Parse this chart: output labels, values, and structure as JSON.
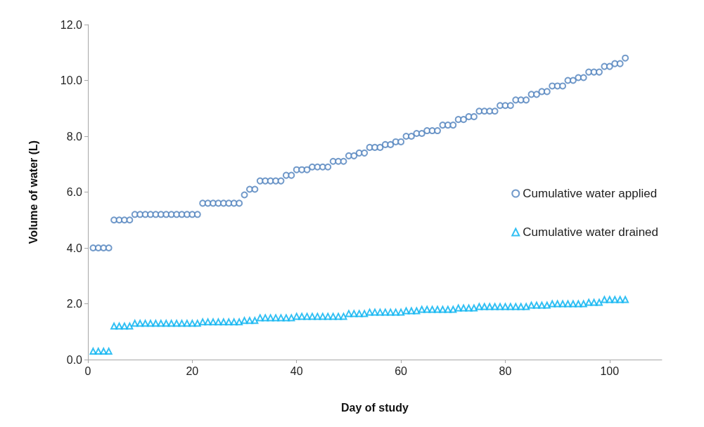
{
  "chart_data": {
    "type": "scatter",
    "xlabel": "Day of study",
    "ylabel": "Volume of water (L)",
    "x": [
      1,
      2,
      3,
      4,
      5,
      6,
      7,
      8,
      9,
      10,
      11,
      12,
      13,
      14,
      15,
      16,
      17,
      18,
      19,
      20,
      21,
      22,
      23,
      24,
      25,
      26,
      27,
      28,
      29,
      30,
      31,
      32,
      33,
      34,
      35,
      36,
      37,
      38,
      39,
      40,
      41,
      42,
      43,
      44,
      45,
      46,
      47,
      48,
      49,
      50,
      51,
      52,
      53,
      54,
      55,
      56,
      57,
      58,
      59,
      60,
      61,
      62,
      63,
      64,
      65,
      66,
      67,
      68,
      69,
      70,
      71,
      72,
      73,
      74,
      75,
      76,
      77,
      78,
      79,
      80,
      81,
      82,
      83,
      84,
      85,
      86,
      87,
      88,
      89,
      90,
      91,
      92,
      93,
      94,
      95,
      96,
      97,
      98,
      99,
      100,
      101,
      102,
      103
    ],
    "series": [
      {
        "name": "Cumulative water applied",
        "color": "#4f81bd",
        "marker": "circle",
        "values": [
          4.0,
          4.0,
          4.0,
          4.0,
          5.0,
          5.0,
          5.0,
          5.0,
          5.2,
          5.2,
          5.2,
          5.2,
          5.2,
          5.2,
          5.2,
          5.2,
          5.2,
          5.2,
          5.2,
          5.2,
          5.2,
          5.6,
          5.6,
          5.6,
          5.6,
          5.6,
          5.6,
          5.6,
          5.6,
          5.9,
          6.1,
          6.1,
          6.4,
          6.4,
          6.4,
          6.4,
          6.4,
          6.6,
          6.6,
          6.8,
          6.8,
          6.8,
          6.9,
          6.9,
          6.9,
          6.9,
          7.1,
          7.1,
          7.1,
          7.3,
          7.3,
          7.4,
          7.4,
          7.6,
          7.6,
          7.6,
          7.7,
          7.7,
          7.8,
          7.8,
          8.0,
          8.0,
          8.1,
          8.1,
          8.2,
          8.2,
          8.2,
          8.4,
          8.4,
          8.4,
          8.6,
          8.6,
          8.7,
          8.7,
          8.9,
          8.9,
          8.9,
          8.9,
          9.1,
          9.1,
          9.1,
          9.3,
          9.3,
          9.3,
          9.5,
          9.5,
          9.6,
          9.6,
          9.8,
          9.8,
          9.8,
          10.0,
          10.0,
          10.1,
          10.1,
          10.3,
          10.3,
          10.3,
          10.5,
          10.5,
          10.6,
          10.6,
          10.8
        ]
      },
      {
        "name": "Cumulative water drained",
        "color": "#00b0f0",
        "marker": "triangle",
        "values": [
          0.3,
          0.3,
          0.3,
          0.3,
          1.2,
          1.2,
          1.2,
          1.2,
          1.3,
          1.3,
          1.3,
          1.3,
          1.3,
          1.3,
          1.3,
          1.3,
          1.3,
          1.3,
          1.3,
          1.3,
          1.3,
          1.35,
          1.35,
          1.35,
          1.35,
          1.35,
          1.35,
          1.35,
          1.35,
          1.4,
          1.4,
          1.4,
          1.5,
          1.5,
          1.5,
          1.5,
          1.5,
          1.5,
          1.5,
          1.55,
          1.55,
          1.55,
          1.55,
          1.55,
          1.55,
          1.55,
          1.55,
          1.55,
          1.55,
          1.65,
          1.65,
          1.65,
          1.65,
          1.7,
          1.7,
          1.7,
          1.7,
          1.7,
          1.7,
          1.7,
          1.75,
          1.75,
          1.75,
          1.8,
          1.8,
          1.8,
          1.8,
          1.8,
          1.8,
          1.8,
          1.85,
          1.85,
          1.85,
          1.85,
          1.9,
          1.9,
          1.9,
          1.9,
          1.9,
          1.9,
          1.9,
          1.9,
          1.9,
          1.9,
          1.95,
          1.95,
          1.95,
          1.95,
          2.0,
          2.0,
          2.0,
          2.0,
          2.0,
          2.0,
          2.0,
          2.05,
          2.05,
          2.05,
          2.15,
          2.15,
          2.15,
          2.15,
          2.15
        ]
      }
    ],
    "xlim": [
      0,
      110
    ],
    "xticks": [
      0,
      20,
      40,
      60,
      80,
      100
    ],
    "ylim": [
      0,
      12
    ],
    "yticks": [
      {
        "value": 0,
        "label": "0.0"
      },
      {
        "value": 2,
        "label": "2.0"
      },
      {
        "value": 4,
        "label": "4.0"
      },
      {
        "value": 6,
        "label": "6.0"
      },
      {
        "value": 8,
        "label": "8.0"
      },
      {
        "value": 10,
        "label": "10.0"
      },
      {
        "value": 12,
        "label": "12.0"
      }
    ],
    "grid": false,
    "legend": "right"
  }
}
